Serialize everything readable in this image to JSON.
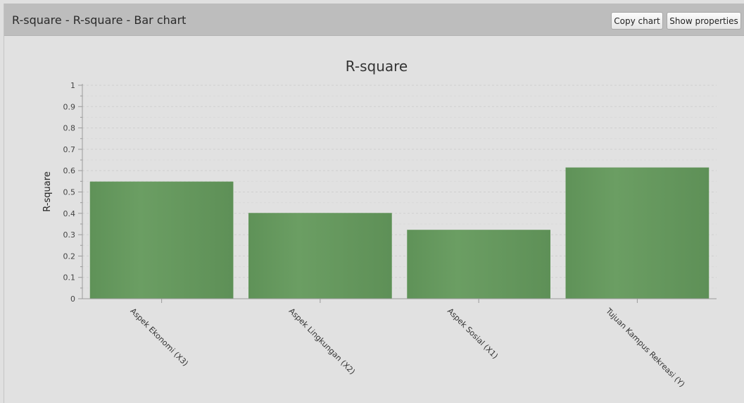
{
  "window": {
    "title": "R-square - R-square - Bar chart",
    "buttons": {
      "copy_chart": "Copy chart",
      "show_properties": "Show properties"
    }
  },
  "colors": {
    "bar": "#67995f",
    "grid": "#cfcfcf",
    "axis": "#9a9a9a"
  },
  "chart_data": {
    "type": "bar",
    "title": "R-square",
    "xlabel": "",
    "ylabel": "R-square",
    "ylim": [
      0,
      1
    ],
    "yticks": [
      "0",
      "0.1",
      "0.2",
      "0.3",
      "0.4",
      "0.5",
      "0.6",
      "0.7",
      "0.8",
      "0.9",
      "1"
    ],
    "grid": true,
    "categories": [
      "Aspek Ekonomi (X3)",
      "Aspek Lingkungan (X2)",
      "Aspek Sosial (X1)",
      "Tujuan Kampus Rekreasi (Y)"
    ],
    "values": [
      0.548,
      0.401,
      0.322,
      0.614
    ]
  }
}
